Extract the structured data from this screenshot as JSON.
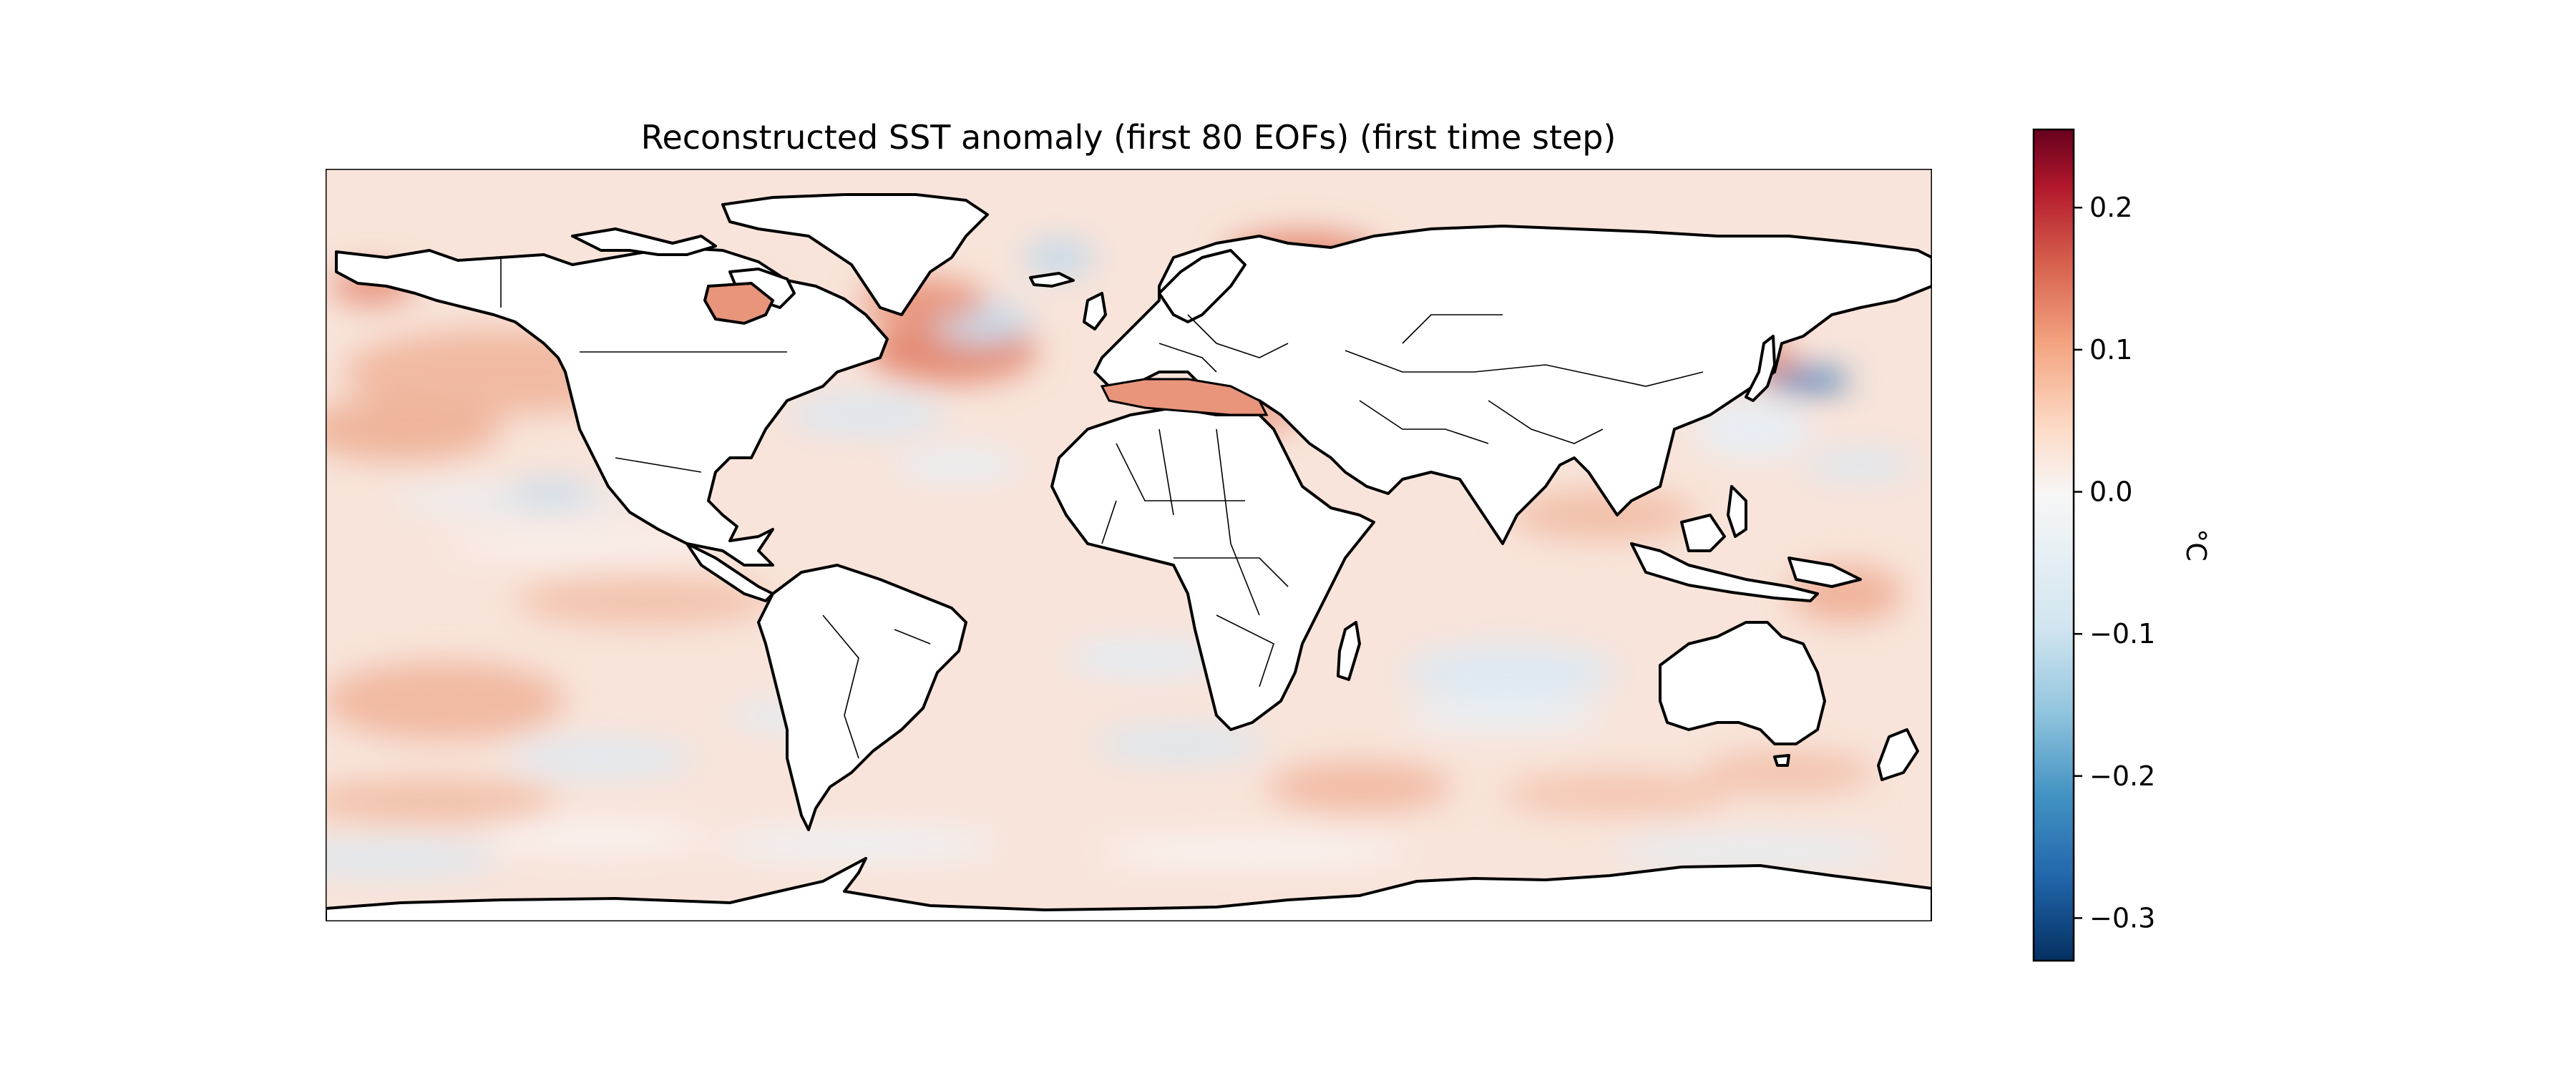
{
  "title": "Reconstructed SST anomaly (first 80 EOFs) (first time step)",
  "colorbar": {
    "label": "°C",
    "colormap": "RdBu_r",
    "vmin": -0.33,
    "vmax": 0.255,
    "ticks": [
      {
        "value": 0.2,
        "label": "0.2"
      },
      {
        "value": 0.1,
        "label": "0.1"
      },
      {
        "value": 0.0,
        "label": "0.0"
      },
      {
        "value": -0.1,
        "label": "−0.1"
      },
      {
        "value": -0.2,
        "label": "−0.2"
      },
      {
        "value": -0.3,
        "label": "−0.3"
      }
    ],
    "colors": [
      "#053061",
      "#2166ac",
      "#4393c3",
      "#92c5de",
      "#d1e5f0",
      "#f7f7f7",
      "#fddbc7",
      "#f4a582",
      "#d6604d",
      "#b2182b",
      "#67001f"
    ]
  },
  "map": {
    "projection": "PlateCarree",
    "lon_range": [
      -180,
      180
    ],
    "lat_range": [
      -90,
      90
    ],
    "background_color": "#f7e6de"
  }
}
